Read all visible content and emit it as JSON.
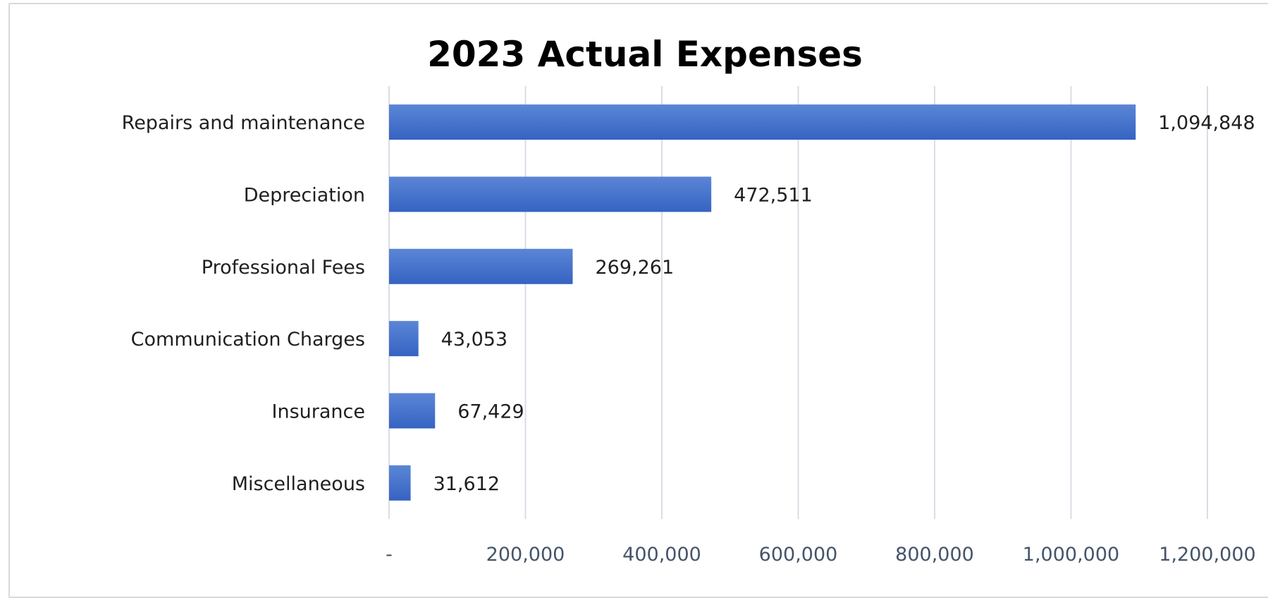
{
  "chart_data": {
    "type": "bar",
    "orientation": "horizontal",
    "title": "2023 Actual Expenses",
    "categories": [
      "Repairs and maintenance",
      "Depreciation",
      "Professional Fees",
      "Communication Charges",
      "Insurance",
      "Miscellaneous"
    ],
    "values": [
      1094848,
      472511,
      269261,
      43053,
      67429,
      31612
    ],
    "data_labels": [
      "1,094,848",
      "472,511",
      "269,261",
      "43,053",
      "67,429",
      "31,612"
    ],
    "xlim": [
      0,
      1200000
    ],
    "x_ticks": [
      0,
      200000,
      400000,
      600000,
      800000,
      1000000,
      1200000
    ],
    "x_tick_labels": [
      "-",
      "200,000",
      "400,000",
      "600,000",
      "800,000",
      "1,000,000",
      "1,200,000"
    ],
    "xlabel": "",
    "ylabel": "",
    "grid": "vertical",
    "legend": "none",
    "colors": {
      "bar_top": "#5b86d6",
      "bar_bottom": "#3563c2",
      "gridline": "#d9dde6",
      "tick_label": "#44546a"
    }
  }
}
